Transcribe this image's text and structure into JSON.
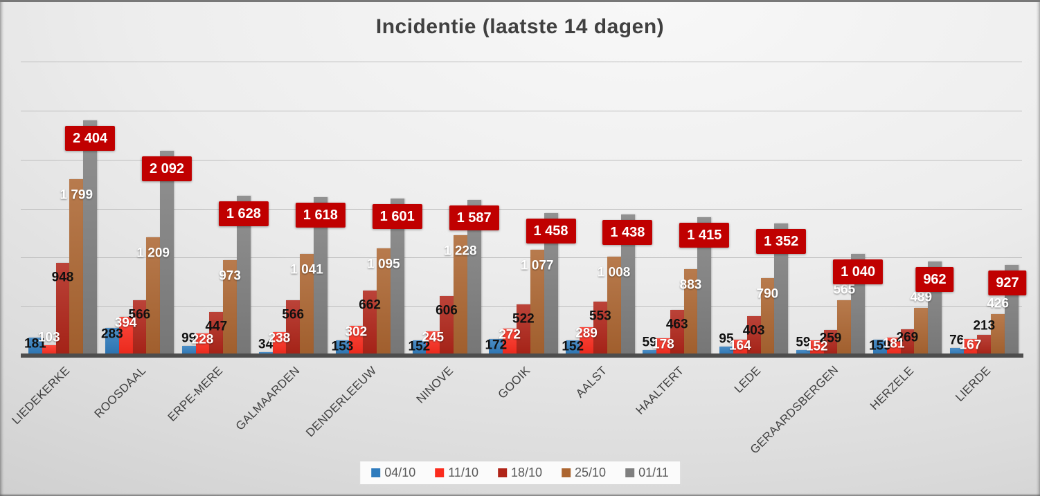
{
  "chart_data": {
    "type": "bar",
    "title": "Incidentie (laatste 14 dagen)",
    "categories": [
      "LIEDEKERKE",
      "ROOSDAAL",
      "ERPE-MERE",
      "GALMAARDEN",
      "DENDERLEEUW",
      "NINOVE",
      "GOOIK",
      "AALST",
      "HAALTERT",
      "LEDE",
      "GERAARDSBERGEN",
      "HERZELE",
      "LIERDE"
    ],
    "series": [
      {
        "name": "04/10",
        "color": "#2E7BBD",
        "label_color": "black",
        "values": [
          181,
          283,
          99,
          34,
          153,
          152,
          172,
          152,
          59,
          95,
          59,
          159,
          76
        ]
      },
      {
        "name": "11/10",
        "color": "#FB2B1D",
        "label_color": "white",
        "values": [
          103,
          394,
          228,
          238,
          302,
          245,
          272,
          289,
          178,
          164,
          152,
          181,
          167
        ]
      },
      {
        "name": "18/10",
        "color": "#B02418",
        "label_color": "black",
        "values": [
          948,
          566,
          447,
          566,
          662,
          606,
          522,
          553,
          463,
          403,
          259,
          269,
          213
        ]
      },
      {
        "name": "25/10",
        "color": "#AC6530",
        "label_color": "white",
        "values": [
          1799,
          1209,
          973,
          1041,
          1095,
          1228,
          1077,
          1008,
          883,
          790,
          565,
          489,
          426
        ]
      },
      {
        "name": "01/11",
        "color": "#7F7F7F",
        "label_color": "white",
        "label_style": "badge",
        "badge_color": "#C00000",
        "values": [
          2404,
          2092,
          1628,
          1618,
          1601,
          1587,
          1458,
          1438,
          1415,
          1352,
          1040,
          962,
          927
        ]
      }
    ],
    "ylim": [
      0,
      3000
    ],
    "gridline_step": 500,
    "grid": true,
    "legend_position": "bottom",
    "value_format": "space_thousands",
    "xlabel": "",
    "ylabel": ""
  }
}
